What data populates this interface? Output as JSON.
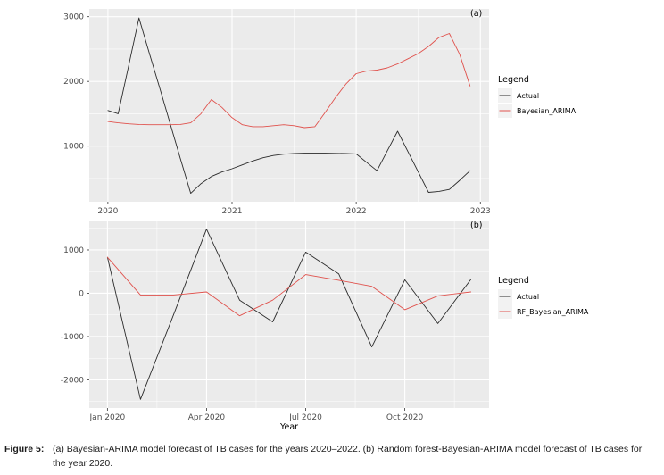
{
  "figure_caption": {
    "label": "Figure 5:",
    "text": "(a) Bayesian-ARIMA model forecast of TB cases for the years 2020–2022. (b) Random forest-Bayesian-ARIMA model forecast of TB cases for the year 2020."
  },
  "colors": {
    "panel_bg": "#ebebeb",
    "grid": "#ffffff",
    "axis_text": "#4d4d4d",
    "actual_line": "#2b2b2b",
    "forecast_line": "#e0524d",
    "legend_key_bg": "#f2f2f2"
  },
  "chart_data": [
    {
      "type": "line",
      "panel_tag": "(a)",
      "title": "",
      "x_axis": {
        "title": "",
        "ticks": [
          2020,
          2021,
          2022,
          2023
        ],
        "labels": [
          "2020",
          "2021",
          "2022",
          "2023"
        ],
        "lim": [
          2019.85,
          2023.07
        ]
      },
      "y_axis": {
        "title": "",
        "ticks": [
          1000,
          2000,
          3000
        ],
        "labels": [
          "1000",
          "2000",
          "3000"
        ],
        "lim": [
          140,
          3120
        ]
      },
      "legend": {
        "title": "Legend",
        "position": "right",
        "entries": [
          {
            "label": "Actual",
            "color": "#2b2b2b"
          },
          {
            "label": "Bayesian_ARIMA",
            "color": "#e0524d"
          }
        ]
      },
      "x": [
        2020.0,
        2020.083,
        2020.167,
        2020.25,
        2020.333,
        2020.417,
        2020.5,
        2020.583,
        2020.667,
        2020.75,
        2020.833,
        2020.917,
        2021.0,
        2021.083,
        2021.167,
        2021.25,
        2021.333,
        2021.417,
        2021.5,
        2021.583,
        2021.667,
        2021.75,
        2021.833,
        2021.917,
        2022.0,
        2022.083,
        2022.167,
        2022.25,
        2022.333,
        2022.417,
        2022.5,
        2022.583,
        2022.667,
        2022.75,
        2022.833,
        2022.917
      ],
      "series": [
        {
          "name": "Actual",
          "color": "#2b2b2b",
          "values": [
            1550,
            1500,
            2240,
            2980,
            2440,
            1900,
            1360,
            810,
            270,
            420,
            530,
            600,
            650,
            710,
            770,
            820,
            855,
            875,
            885,
            890,
            890,
            890,
            888,
            885,
            880,
            750,
            620,
            925,
            1230,
            915,
            600,
            285,
            300,
            330,
            470,
            620
          ]
        },
        {
          "name": "Bayesian_ARIMA",
          "color": "#e0524d",
          "values": [
            1380,
            1360,
            1345,
            1335,
            1330,
            1330,
            1330,
            1335,
            1360,
            1500,
            1720,
            1600,
            1440,
            1330,
            1300,
            1300,
            1315,
            1330,
            1315,
            1285,
            1300,
            1520,
            1750,
            1960,
            2120,
            2160,
            2175,
            2210,
            2270,
            2350,
            2430,
            2540,
            2680,
            2740,
            2420,
            1930
          ]
        }
      ]
    },
    {
      "type": "line",
      "panel_tag": "(b)",
      "title": "",
      "x_axis": {
        "title": "Year",
        "ticks": [
          0,
          3,
          6,
          9
        ],
        "labels": [
          "Jan 2020",
          "Apr 2020",
          "Jul 2020",
          "Oct 2020"
        ],
        "lim": [
          -0.55,
          11.55
        ]
      },
      "y_axis": {
        "title": "",
        "ticks": [
          -2000,
          -1000,
          0,
          1000
        ],
        "labels": [
          "-2000",
          "-1000",
          "0",
          "1000"
        ],
        "lim": [
          -2650,
          1680
        ]
      },
      "legend": {
        "title": "Legend",
        "position": "right",
        "entries": [
          {
            "label": "Actual",
            "color": "#2b2b2b"
          },
          {
            "label": "RF_Bayesian_ARIMA",
            "color": "#e0524d"
          }
        ]
      },
      "x": [
        0,
        1,
        2,
        3,
        4,
        5,
        6,
        7,
        8,
        9,
        10,
        11
      ],
      "series": [
        {
          "name": "Actual",
          "color": "#2b2b2b",
          "values": [
            830,
            -2450,
            -500,
            1480,
            -160,
            -660,
            950,
            450,
            -1240,
            310,
            -700,
            320
          ]
        },
        {
          "name": "RF_Bayesian_ARIMA",
          "color": "#e0524d",
          "values": [
            830,
            -40,
            -40,
            30,
            -520,
            -160,
            430,
            300,
            160,
            -380,
            -60,
            30
          ]
        }
      ]
    }
  ]
}
